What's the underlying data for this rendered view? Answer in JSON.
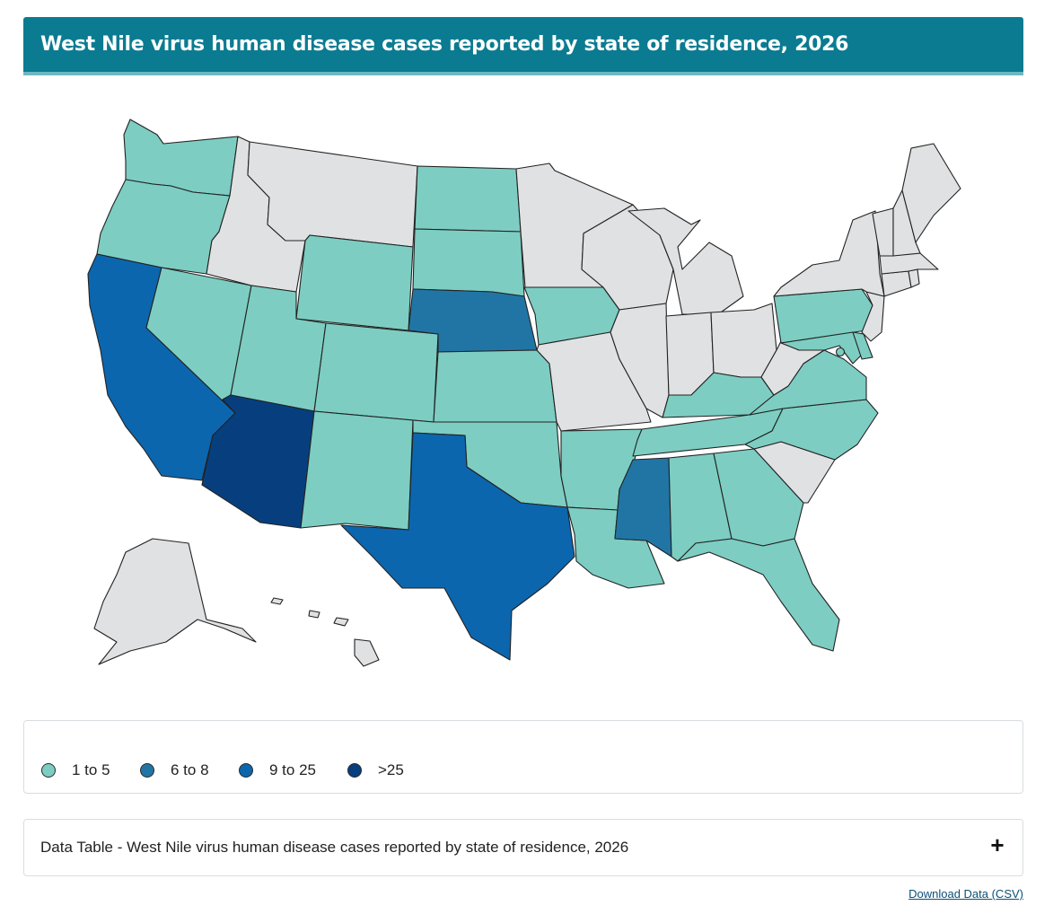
{
  "header": {
    "title": "West Nile virus human disease cases reported by state of residence, 2026"
  },
  "colors": {
    "no_cases": "#e0e1e3",
    "range_1_5": "#7dcdc2",
    "range_6_8": "#2175a5",
    "range_9_25": "#0c66ae",
    "range_over_25": "#073f7e",
    "title_bar": "#0a7b91"
  },
  "legend": {
    "items": [
      {
        "label": "1 to 5",
        "color": "#7dcdc2"
      },
      {
        "label": "6 to 8",
        "color": "#2175a5"
      },
      {
        "label": "9 to 25",
        "color": "#0c66ae"
      },
      {
        "label": ">25",
        "color": "#073f7e"
      }
    ]
  },
  "map_data": {
    "category_by_state": {
      "WA": "1 to 5",
      "OR": "1 to 5",
      "CA": "9 to 25",
      "NV": "1 to 5",
      "ID": "none",
      "MT": "none",
      "WY": "1 to 5",
      "UT": "1 to 5",
      "AZ": ">25",
      "CO": "1 to 5",
      "NM": "1 to 5",
      "ND": "1 to 5",
      "SD": "1 to 5",
      "NE": "6 to 8",
      "KS": "1 to 5",
      "OK": "1 to 5",
      "TX": "9 to 25",
      "MN": "none",
      "IA": "1 to 5",
      "MO": "none",
      "AR": "1 to 5",
      "LA": "1 to 5",
      "WI": "none",
      "IL": "none",
      "MI": "none",
      "IN": "none",
      "OH": "none",
      "KY": "1 to 5",
      "TN": "1 to 5",
      "MS": "6 to 8",
      "AL": "1 to 5",
      "GA": "1 to 5",
      "FL": "1 to 5",
      "SC": "none",
      "NC": "1 to 5",
      "VA": "1 to 5",
      "WV": "none",
      "PA": "1 to 5",
      "NY": "none",
      "NJ": "none",
      "DE": "1 to 5",
      "MD": "1 to 5",
      "DC": "1 to 5",
      "CT": "none",
      "RI": "none",
      "MA": "none",
      "VT": "none",
      "NH": "none",
      "ME": "none",
      "AK": "none",
      "HI": "none"
    }
  },
  "data_table": {
    "title": "Data Table - West Nile virus human disease cases reported by state of residence, 2026",
    "expand_label": "+"
  },
  "download": {
    "label": "Download Data (CSV)"
  }
}
